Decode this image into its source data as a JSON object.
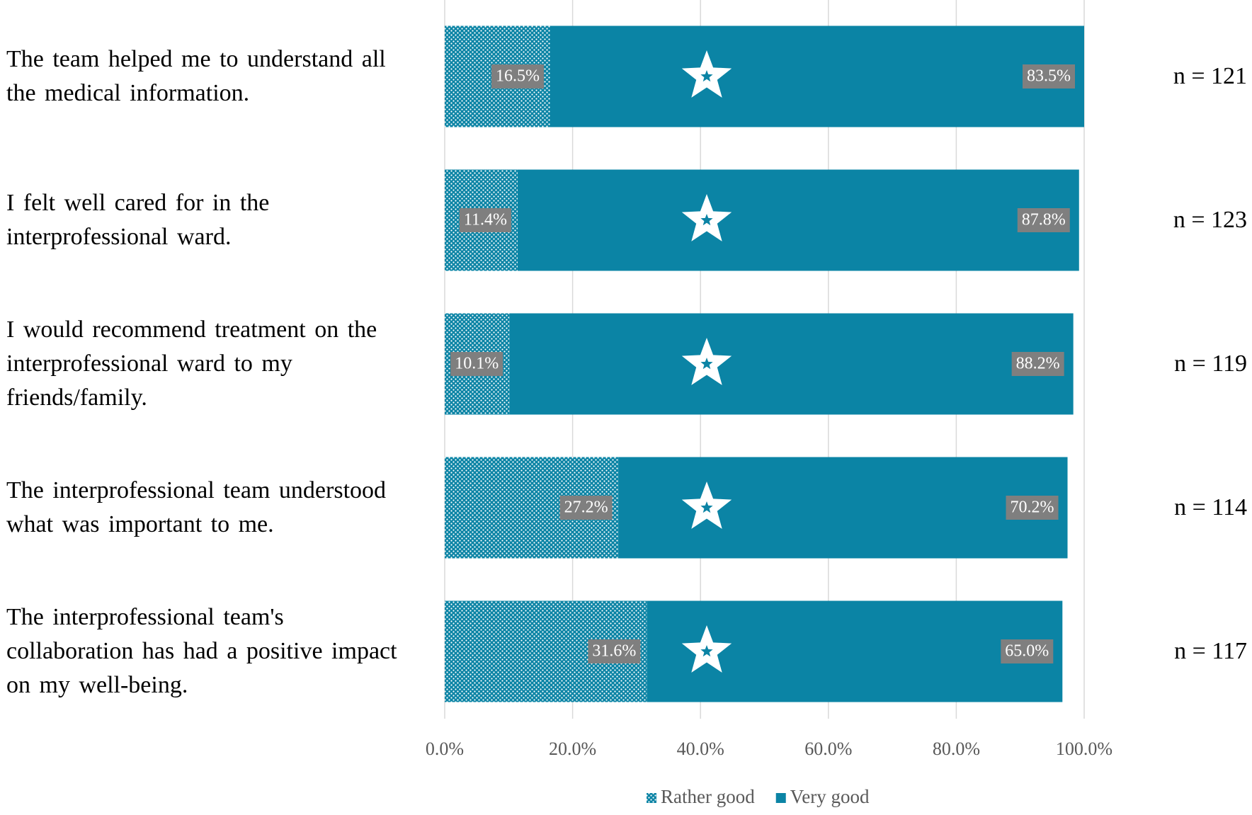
{
  "chart_data": {
    "type": "stacked-barh",
    "categories": [
      "The team helped me to understand all the medical information.",
      "I felt well cared for in the interprofessional ward.",
      "I would recommend treatment on the interprofessional ward to my friends/family.",
      "The interprofessional team understood what was important to me.",
      "The interprofessional team's collaboration has had a positive impact on my well-being."
    ],
    "annotations": [
      "n = 121",
      "n = 123",
      "n = 119",
      "n = 114",
      "n = 117"
    ],
    "series": [
      {
        "name": "Rather good",
        "color": "#0b84a5",
        "pattern": "dots",
        "values": [
          16.5,
          11.4,
          10.1,
          27.2,
          31.6
        ],
        "value_labels": [
          "16.5%",
          "11.4%",
          "10.1%",
          "27.2%",
          "31.6%"
        ]
      },
      {
        "name": "Very good",
        "color": "#0b84a5",
        "values": [
          83.5,
          87.8,
          88.2,
          70.2,
          65.0
        ],
        "value_labels": [
          "83.5%",
          "87.8%",
          "88.2%",
          "70.2%",
          "65.0%"
        ]
      }
    ],
    "xlim": [
      0,
      100
    ],
    "xticks": [
      {
        "value": 0,
        "label": "0.0%"
      },
      {
        "value": 20,
        "label": "20.0%"
      },
      {
        "value": 40,
        "label": "40.0%"
      },
      {
        "value": 60,
        "label": "60.0%"
      },
      {
        "value": 80,
        "label": "80.0%"
      },
      {
        "value": 100,
        "label": "100.0%"
      }
    ],
    "grid": true,
    "legend": "bottom"
  }
}
